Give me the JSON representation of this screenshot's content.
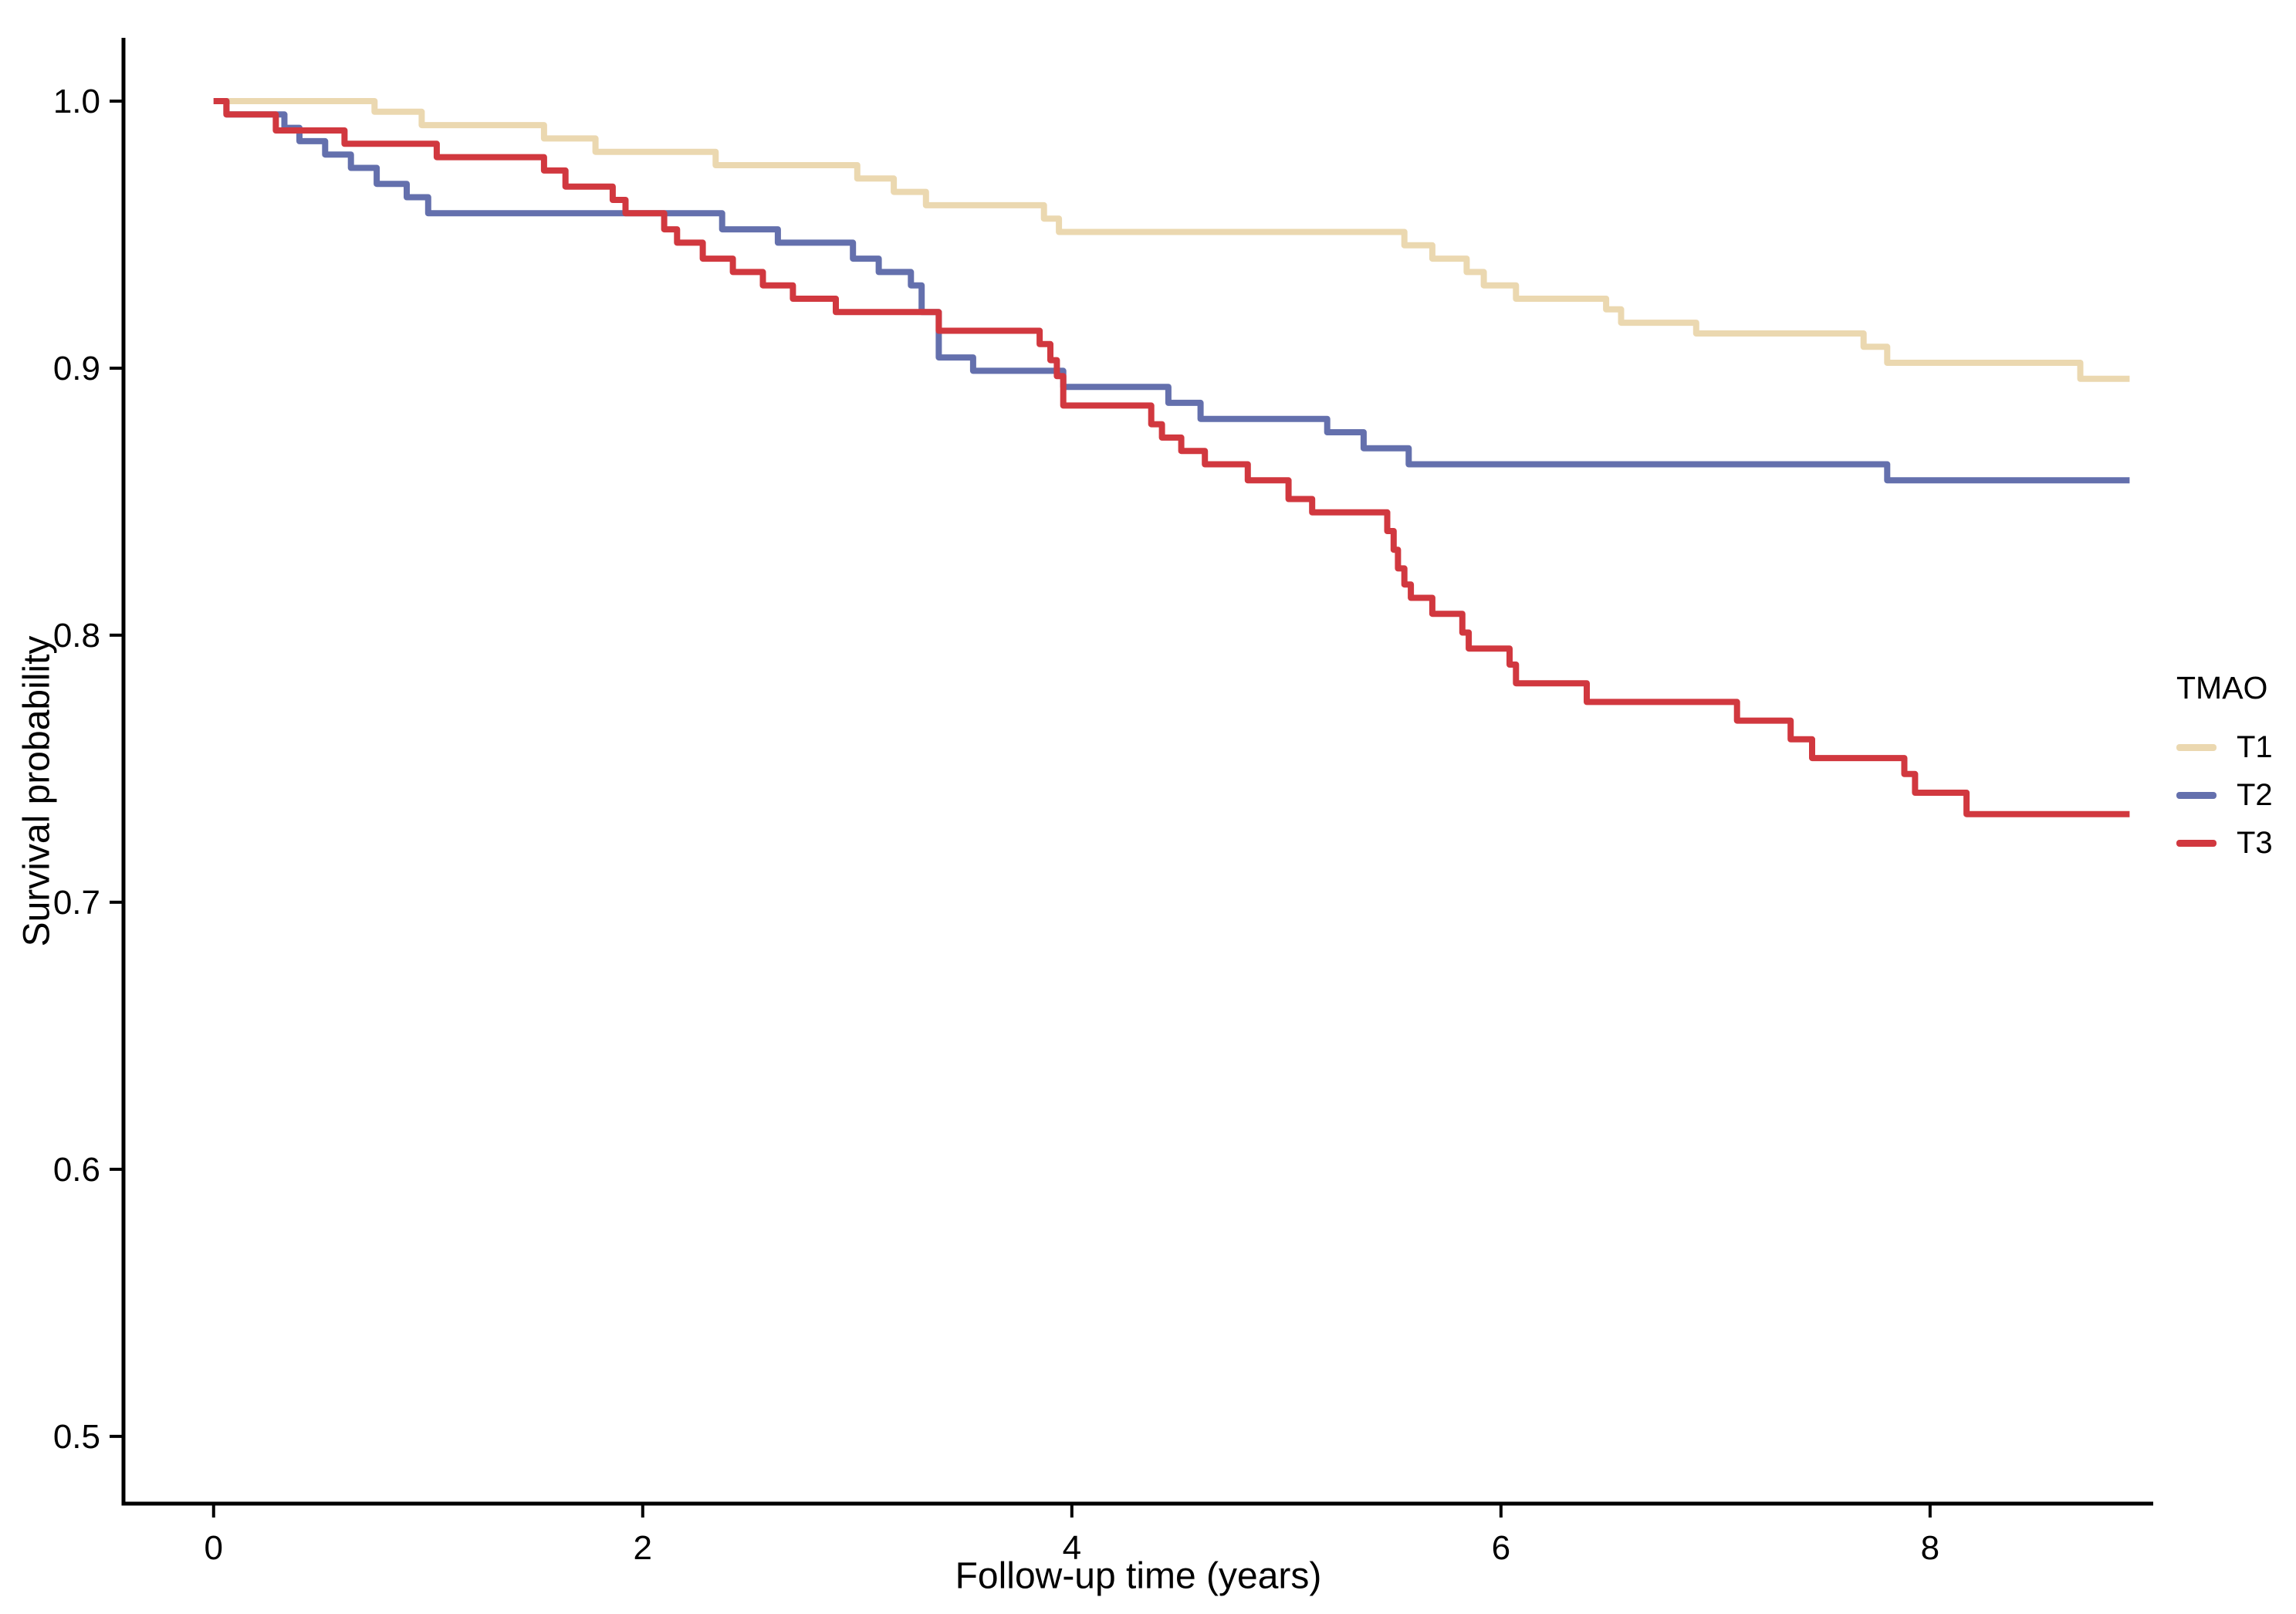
{
  "figure": {
    "background": "#ffffff",
    "text_color": "#000000",
    "axis_color": "#000000"
  },
  "chart_data": {
    "type": "line",
    "subtype": "kaplan-meier-step",
    "title": "",
    "xlabel": "Follow-up time (years)",
    "ylabel": "Survival probability",
    "legend_title": "TMAO",
    "legend_position": "right",
    "grid": false,
    "xlim": [
      -0.42,
      9.04
    ],
    "ylim": [
      0.4748,
      1.0237
    ],
    "x_ticks": [
      0,
      2,
      4,
      6,
      8
    ],
    "x_tick_labels": [
      "0",
      "2",
      "4",
      "6",
      "8"
    ],
    "y_ticks": [
      0.5,
      0.6,
      0.7,
      0.8,
      0.9,
      1.0
    ],
    "y_tick_labels": [
      "0.5",
      "0.6",
      "0.7",
      "0.8",
      "0.9",
      "1.0"
    ],
    "follow_up_end": 8.93,
    "series": [
      {
        "name": "T1",
        "color": "#EBD8B0",
        "points": [
          [
            0,
            1.0
          ],
          [
            0.75,
            0.996
          ],
          [
            0.97,
            0.991
          ],
          [
            1.54,
            0.986
          ],
          [
            1.78,
            0.981
          ],
          [
            2.34,
            0.976
          ],
          [
            3.0,
            0.971
          ],
          [
            3.17,
            0.966
          ],
          [
            3.32,
            0.961
          ],
          [
            3.87,
            0.956
          ],
          [
            3.94,
            0.951
          ],
          [
            5.55,
            0.946
          ],
          [
            5.68,
            0.941
          ],
          [
            5.84,
            0.936
          ],
          [
            5.92,
            0.931
          ],
          [
            6.07,
            0.926
          ],
          [
            6.49,
            0.922
          ],
          [
            6.56,
            0.917
          ],
          [
            6.91,
            0.913
          ],
          [
            7.69,
            0.908
          ],
          [
            7.8,
            0.902
          ],
          [
            8.7,
            0.896
          ]
        ]
      },
      {
        "name": "T2",
        "color": "#6470AD",
        "points": [
          [
            0,
            1.0
          ],
          [
            0.06,
            0.995
          ],
          [
            0.33,
            0.99
          ],
          [
            0.4,
            0.985
          ],
          [
            0.52,
            0.98
          ],
          [
            0.64,
            0.975
          ],
          [
            0.76,
            0.969
          ],
          [
            0.9,
            0.964
          ],
          [
            1.0,
            0.958
          ],
          [
            2.37,
            0.952
          ],
          [
            2.63,
            0.947
          ],
          [
            2.98,
            0.941
          ],
          [
            3.1,
            0.936
          ],
          [
            3.25,
            0.931
          ],
          [
            3.3,
            0.921
          ],
          [
            3.38,
            0.904
          ],
          [
            3.54,
            0.899
          ],
          [
            3.96,
            0.893
          ],
          [
            4.45,
            0.887
          ],
          [
            4.6,
            0.881
          ],
          [
            5.19,
            0.876
          ],
          [
            5.36,
            0.87
          ],
          [
            5.57,
            0.864
          ],
          [
            7.8,
            0.858
          ]
        ]
      },
      {
        "name": "T3",
        "color": "#D1383F",
        "points": [
          [
            0,
            1.0
          ],
          [
            0.06,
            0.995
          ],
          [
            0.29,
            0.989
          ],
          [
            0.61,
            0.984
          ],
          [
            1.04,
            0.979
          ],
          [
            1.54,
            0.974
          ],
          [
            1.64,
            0.968
          ],
          [
            1.86,
            0.963
          ],
          [
            1.92,
            0.958
          ],
          [
            2.1,
            0.952
          ],
          [
            2.16,
            0.947
          ],
          [
            2.28,
            0.941
          ],
          [
            2.42,
            0.936
          ],
          [
            2.56,
            0.931
          ],
          [
            2.7,
            0.926
          ],
          [
            2.9,
            0.921
          ],
          [
            3.38,
            0.914
          ],
          [
            3.85,
            0.909
          ],
          [
            3.9,
            0.903
          ],
          [
            3.93,
            0.897
          ],
          [
            3.96,
            0.886
          ],
          [
            4.37,
            0.879
          ],
          [
            4.42,
            0.874
          ],
          [
            4.51,
            0.869
          ],
          [
            4.62,
            0.864
          ],
          [
            4.82,
            0.858
          ],
          [
            5.01,
            0.851
          ],
          [
            5.12,
            0.846
          ],
          [
            5.47,
            0.839
          ],
          [
            5.5,
            0.832
          ],
          [
            5.52,
            0.825
          ],
          [
            5.55,
            0.819
          ],
          [
            5.58,
            0.814
          ],
          [
            5.68,
            0.808
          ],
          [
            5.82,
            0.801
          ],
          [
            5.85,
            0.795
          ],
          [
            6.04,
            0.789
          ],
          [
            6.07,
            0.782
          ],
          [
            6.4,
            0.775
          ],
          [
            7.1,
            0.768
          ],
          [
            7.35,
            0.761
          ],
          [
            7.45,
            0.754
          ],
          [
            7.88,
            0.748
          ],
          [
            7.93,
            0.741
          ],
          [
            8.17,
            0.733
          ]
        ]
      }
    ]
  }
}
